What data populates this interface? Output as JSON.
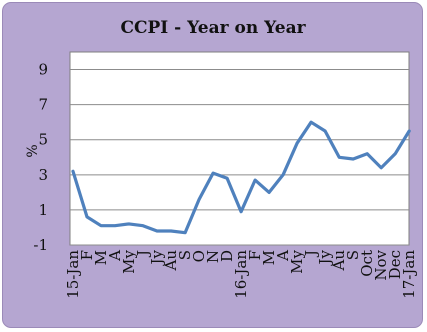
{
  "chart_data": {
    "type": "line",
    "title": "CCPI - Year on Year",
    "ylabel": "%",
    "xlabel": "",
    "ylim": [
      -1,
      10
    ],
    "yticks": [
      -1,
      1,
      3,
      5,
      7,
      9
    ],
    "x": [
      "15-Jan",
      "F",
      "M",
      "A",
      "My",
      "J",
      "Jy",
      "Au",
      "S",
      "O",
      "N",
      "D",
      "16-Jan",
      "F",
      "M",
      "A",
      "My",
      "J",
      "Jy",
      "Au",
      "S",
      "Oct",
      "Nov",
      "Dec",
      "17-Jan"
    ],
    "xtick_labels": [
      "15-Jan",
      "F",
      "M",
      "A",
      "My",
      "J",
      "Jy",
      "Au",
      "S",
      "O",
      "N",
      "D",
      "16-Jan",
      "F",
      "M",
      "A",
      "My",
      "J",
      "Jy",
      "Au",
      "S",
      "Oct",
      "Nov",
      "Dec",
      "17-Jan"
    ],
    "series": [
      {
        "values": [
          3.2,
          0.6,
          0.1,
          0.1,
          0.2,
          0.1,
          -0.2,
          -0.2,
          -0.3,
          1.6,
          3.1,
          2.8,
          0.9,
          2.7,
          2.0,
          3.0,
          4.8,
          6.0,
          5.5,
          4.0,
          3.9,
          4.2,
          3.4,
          4.2,
          5.5
        ],
        "color": "#4f81bd"
      }
    ],
    "grid": true,
    "legend": "none",
    "background_color": "#b5a6d1",
    "plot_background_color": "#ffffff"
  }
}
